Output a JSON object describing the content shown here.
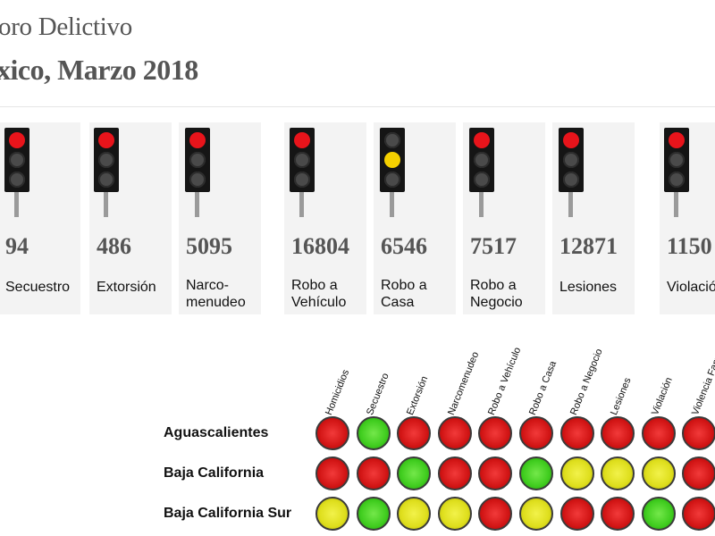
{
  "header": {
    "title_line1": "oro Delictivo",
    "title_line2": "xico, Marzo 2018"
  },
  "colors": {
    "red": "#e8141b",
    "yellow": "#f5d000",
    "green": "#3fcc1e"
  },
  "cards": [
    {
      "count": "94",
      "label": "Secuestro",
      "light": "red"
    },
    {
      "count": "486",
      "label": "Extorsión",
      "light": "red"
    },
    {
      "count": "5095",
      "label": "Narco-\nmenudeo",
      "light": "red"
    },
    {
      "count": "16804",
      "label": "Robo a\nVehículo",
      "light": "red"
    },
    {
      "count": "6546",
      "label": "Robo a\nCasa",
      "light": "yellow"
    },
    {
      "count": "7517",
      "label": "Robo a\nNegocio",
      "light": "red"
    },
    {
      "count": "12871",
      "label": "Lesiones",
      "light": "red"
    },
    {
      "count": "1150",
      "label": "Violación",
      "light": "red"
    }
  ],
  "matrix": {
    "columns": [
      "Homicidios",
      "Secuestro",
      "Extorsión",
      "Narcomenudeo",
      "Robo a Vehículo",
      "Robo a Casa",
      "Robo a Negocio",
      "Lesiones",
      "Violación",
      "Violencia Fam."
    ],
    "rows": [
      {
        "name": "Aguascalientes",
        "lights": [
          "red",
          "green",
          "red",
          "red",
          "red",
          "red",
          "red",
          "red",
          "red",
          "red"
        ]
      },
      {
        "name": "Baja California",
        "lights": [
          "red",
          "red",
          "green",
          "red",
          "red",
          "green",
          "yellow",
          "yellow",
          "yellow",
          "red"
        ]
      },
      {
        "name": "Baja California Sur",
        "lights": [
          "yellow",
          "green",
          "yellow",
          "yellow",
          "red",
          "yellow",
          "red",
          "red",
          "green",
          "red"
        ]
      }
    ]
  }
}
